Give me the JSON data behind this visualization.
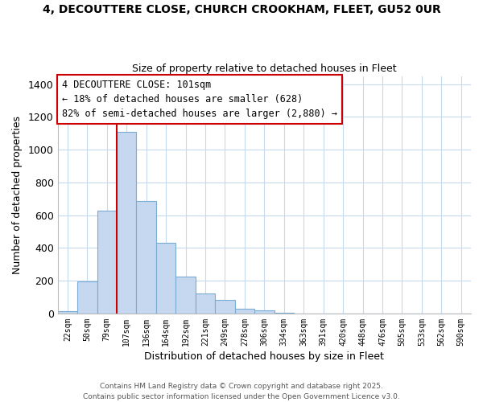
{
  "title": "4, DECOUTTERE CLOSE, CHURCH CROOKHAM, FLEET, GU52 0UR",
  "subtitle": "Size of property relative to detached houses in Fleet",
  "xlabel": "Distribution of detached houses by size in Fleet",
  "ylabel": "Number of detached properties",
  "bar_labels": [
    "22sqm",
    "50sqm",
    "79sqm",
    "107sqm",
    "136sqm",
    "164sqm",
    "192sqm",
    "221sqm",
    "249sqm",
    "278sqm",
    "306sqm",
    "334sqm",
    "363sqm",
    "391sqm",
    "420sqm",
    "448sqm",
    "476sqm",
    "505sqm",
    "533sqm",
    "562sqm",
    "590sqm"
  ],
  "bar_values": [
    15,
    195,
    628,
    1110,
    685,
    430,
    225,
    120,
    82,
    30,
    20,
    5,
    0,
    0,
    0,
    0,
    0,
    0,
    0,
    0,
    0
  ],
  "bar_color": "#c5d8ef",
  "bar_edge_color": "#7aadd4",
  "vline_color": "#cc0000",
  "ylim": [
    0,
    1450
  ],
  "yticks": [
    0,
    200,
    400,
    600,
    800,
    1000,
    1200,
    1400
  ],
  "annotation_title": "4 DECOUTTERE CLOSE: 101sqm",
  "annotation_line1": "← 18% of detached houses are smaller (628)",
  "annotation_line2": "82% of semi-detached houses are larger (2,880) →",
  "footer1": "Contains HM Land Registry data © Crown copyright and database right 2025.",
  "footer2": "Contains public sector information licensed under the Open Government Licence v3.0.",
  "background_color": "#ffffff",
  "grid_color": "#c5daf0"
}
